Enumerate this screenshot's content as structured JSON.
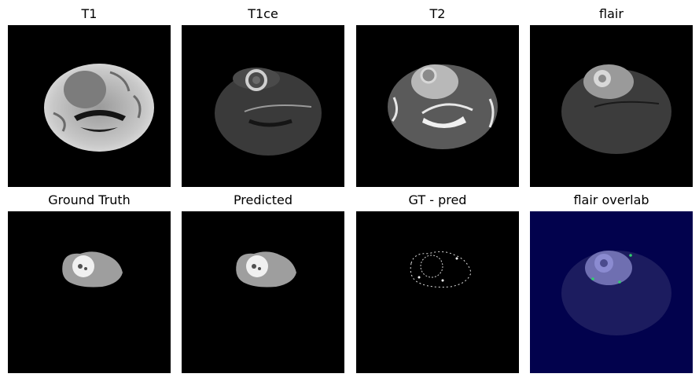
{
  "panels": [
    {
      "title": "T1"
    },
    {
      "title": "T1ce"
    },
    {
      "title": "T2"
    },
    {
      "title": "flair"
    },
    {
      "title": "Ground Truth"
    },
    {
      "title": "Predicted"
    },
    {
      "title": "GT - pred"
    },
    {
      "title": "flair overlab"
    }
  ]
}
